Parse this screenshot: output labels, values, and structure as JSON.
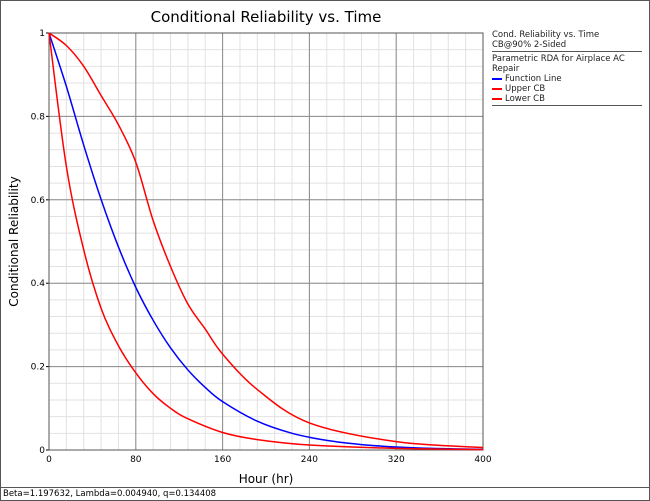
{
  "chart_data": {
    "type": "line",
    "title": "Conditional Reliability vs. Time",
    "xlabel": "Hour (hr)",
    "ylabel": "Conditional Reliability",
    "xlim": [
      0,
      400
    ],
    "ylim": [
      0,
      1
    ],
    "x_ticks": [
      "0",
      "80",
      "160",
      "240",
      "320",
      "400"
    ],
    "y_ticks": [
      "0",
      "0.2",
      "0.4",
      "0.6",
      "0.8",
      "1"
    ],
    "grid": true,
    "legend_position": "right",
    "series": [
      {
        "name": "Function Line",
        "color": "#0000ff",
        "x": [
          0,
          16,
          32,
          48,
          64,
          80,
          96,
          112,
          128,
          144,
          160,
          192,
          224,
          256,
          288,
          320,
          352,
          400
        ],
        "y": [
          1,
          0.872,
          0.731,
          0.601,
          0.487,
          0.39,
          0.311,
          0.245,
          0.192,
          0.15,
          0.116,
          0.069,
          0.04,
          0.023,
          0.013,
          0.0072,
          0.0039,
          0.0016
        ]
      },
      {
        "name": "Upper CB",
        "color": "#ff0000",
        "x": [
          0,
          16,
          32,
          48,
          64,
          80,
          96,
          112,
          128,
          144,
          160,
          192,
          240,
          320,
          400
        ],
        "y": [
          1,
          0.97,
          0.92,
          0.85,
          0.78,
          0.69,
          0.55,
          0.44,
          0.35,
          0.29,
          0.23,
          0.145,
          0.065,
          0.02,
          0.006
        ]
      },
      {
        "name": "Lower CB",
        "color": "#ff0000",
        "x": [
          0,
          16,
          32,
          48,
          64,
          80,
          96,
          112,
          128,
          160,
          192,
          240,
          320,
          400
        ],
        "y": [
          1,
          0.68,
          0.48,
          0.34,
          0.25,
          0.185,
          0.135,
          0.1,
          0.075,
          0.042,
          0.025,
          0.012,
          0.004,
          0.001
        ]
      }
    ]
  },
  "legend": {
    "header_line1": "Cond. Reliability vs. Time",
    "header_line2": "CB@90% 2-Sided",
    "group": "Parametric RDA for Airplace AC Repair",
    "items": [
      "Function Line",
      "Upper CB",
      "Lower CB"
    ]
  },
  "status": "Beta=1.197632, Lambda=0.004940, q=0.134408"
}
